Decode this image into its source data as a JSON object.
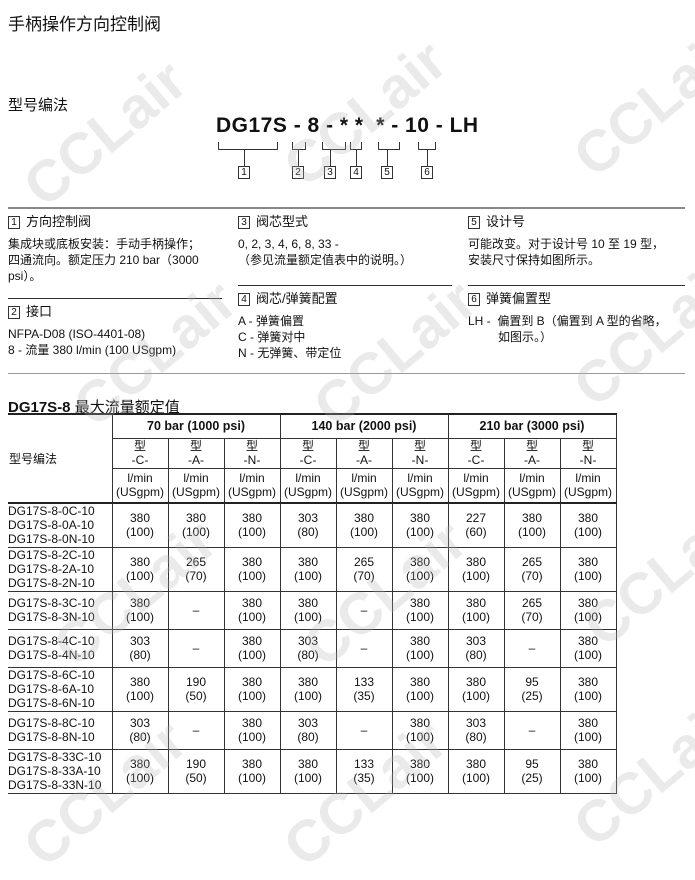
{
  "title": "手柄操作方向控制阀",
  "model_heading": "型号编法",
  "model_code": "DG17S - 8 - * *  * - 10 - LH",
  "code_numbers": [
    "1",
    "2",
    "3",
    "4",
    "5",
    "6"
  ],
  "sections": [
    {
      "num": "1",
      "heading": "方向控制阀",
      "lines": [
        "集成块或底板安装：手动手柄操作；",
        "四通流向。额定压力 210 bar（3000",
        "psi）。"
      ]
    },
    {
      "num": "2",
      "heading": "接口",
      "lines": [
        "NFPA-D08 (ISO-4401-08)",
        "8 - 流量 380 l/min (100 USgpm)"
      ]
    },
    {
      "num": "3",
      "heading": "阀芯型式",
      "lines": [
        "0, 2, 3, 4, 6, 8, 33 -",
        "（参见流量额定值表中的说明。）"
      ]
    },
    {
      "num": "4",
      "heading": "阀芯/弹簧配置",
      "lines": [
        "A - 弹簧偏置",
        "C - 弹簧对中",
        "N - 无弹簧、带定位"
      ]
    },
    {
      "num": "5",
      "heading": "设计号",
      "lines": [
        "可能改变。对于设计号 10 至 19 型，",
        "安装尺寸保持如图所示。"
      ]
    },
    {
      "num": "6",
      "heading": "弹簧偏置型",
      "lines": [
        "LH -  偏置到 B（偏置到 A 型的省略，",
        "         如图示。）"
      ]
    }
  ],
  "table": {
    "title_bold": "DG17S-8",
    "title_rest": " 最大流量额定值",
    "model_header": "型号编法",
    "pressure_groups": [
      "70 bar (1000 psi)",
      "140 bar (2000 psi)",
      "210 bar (3000 psi)"
    ],
    "type_prefix": "型",
    "types": [
      "-C-",
      "-A-",
      "-N-"
    ],
    "unit1": "l/min",
    "unit2": "(USgpm)",
    "rows": [
      {
        "models": [
          "DG17S-8-0C-10",
          "DG17S-8-0A-10",
          "DG17S-8-0N-10"
        ],
        "values": [
          [
            "380",
            "(100)"
          ],
          [
            "380",
            "(100)"
          ],
          [
            "380",
            "(100)"
          ],
          [
            "303",
            "(80)"
          ],
          [
            "380",
            "(100)"
          ],
          [
            "380",
            "(100)"
          ],
          [
            "227",
            "(60)"
          ],
          [
            "380",
            "(100)"
          ],
          [
            "380",
            "(100)"
          ]
        ]
      },
      {
        "models": [
          "DG17S-8-2C-10",
          "DG17S-8-2A-10",
          "DG17S-8-2N-10"
        ],
        "values": [
          [
            "380",
            "(100)"
          ],
          [
            "265",
            "(70)"
          ],
          [
            "380",
            "(100)"
          ],
          [
            "380",
            "(100)"
          ],
          [
            "265",
            "(70)"
          ],
          [
            "380",
            "(100)"
          ],
          [
            "380",
            "(100)"
          ],
          [
            "265",
            "(70)"
          ],
          [
            "380",
            "(100)"
          ]
        ]
      },
      {
        "models": [
          "DG17S-8-3C-10",
          "DG17S-8-3N-10"
        ],
        "values": [
          [
            "380",
            "(100)"
          ],
          [
            "–",
            ""
          ],
          [
            "380",
            "(100)"
          ],
          [
            "380",
            "(100)"
          ],
          [
            "–",
            ""
          ],
          [
            "380",
            "(100)"
          ],
          [
            "380",
            "(100)"
          ],
          [
            "265",
            "(70)"
          ],
          [
            "380",
            "(100)"
          ]
        ]
      },
      {
        "models": [
          "DG17S-8-4C-10",
          "DG17S-8-4N-10"
        ],
        "values": [
          [
            "303",
            "(80)"
          ],
          [
            "–",
            ""
          ],
          [
            "380",
            "(100)"
          ],
          [
            "303",
            "(80)"
          ],
          [
            "–",
            ""
          ],
          [
            "380",
            "(100)"
          ],
          [
            "303",
            "(80)"
          ],
          [
            "–",
            ""
          ],
          [
            "380",
            "(100)"
          ]
        ]
      },
      {
        "models": [
          "DG17S-8-6C-10",
          "DG17S-8-6A-10",
          "DG17S-8-6N-10"
        ],
        "values": [
          [
            "380",
            "(100)"
          ],
          [
            "190",
            "(50)"
          ],
          [
            "380",
            "(100)"
          ],
          [
            "380",
            "(100)"
          ],
          [
            "133",
            "(35)"
          ],
          [
            "380",
            "(100)"
          ],
          [
            "380",
            "(100)"
          ],
          [
            "95",
            "(25)"
          ],
          [
            "380",
            "(100)"
          ]
        ]
      },
      {
        "models": [
          "DG17S-8-8C-10",
          "DG17S-8-8N-10"
        ],
        "values": [
          [
            "303",
            "(80)"
          ],
          [
            "–",
            ""
          ],
          [
            "380",
            "(100)"
          ],
          [
            "303",
            "(80)"
          ],
          [
            "–",
            ""
          ],
          [
            "380",
            "(100)"
          ],
          [
            "303",
            "(80)"
          ],
          [
            "–",
            ""
          ],
          [
            "380",
            "(100)"
          ]
        ]
      },
      {
        "models": [
          "DG17S-8-33C-10",
          "DG17S-8-33A-10",
          "DG17S-8-33N-10"
        ],
        "values": [
          [
            "380",
            "(100)"
          ],
          [
            "190",
            "(50)"
          ],
          [
            "380",
            "(100)"
          ],
          [
            "380",
            "(100)"
          ],
          [
            "133",
            "(35)"
          ],
          [
            "380",
            "(100)"
          ],
          [
            "380",
            "(100)"
          ],
          [
            "95",
            "(25)"
          ],
          [
            "380",
            "(100)"
          ]
        ]
      }
    ]
  },
  "watermark": "CCLair"
}
